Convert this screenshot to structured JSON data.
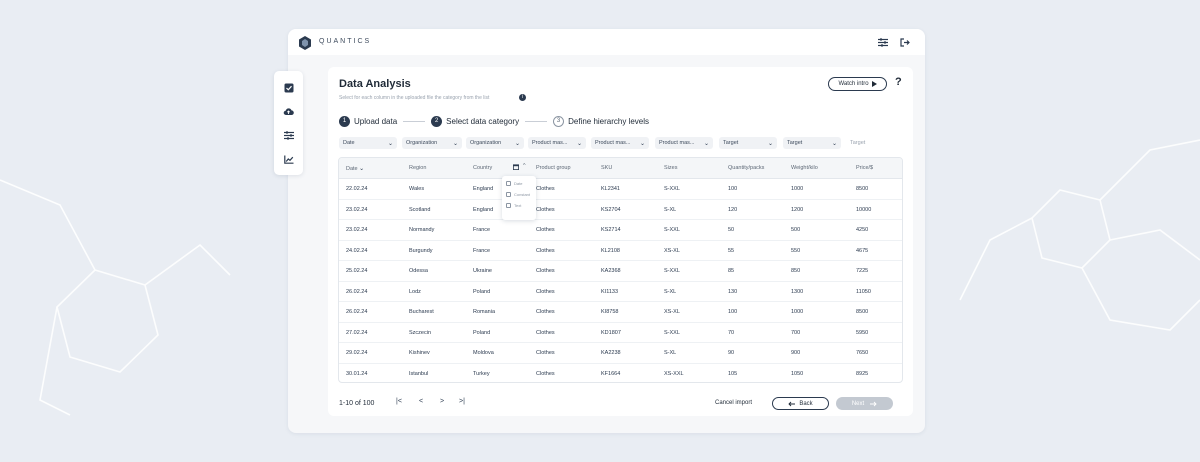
{
  "app": {
    "brand": "QUANTICS"
  },
  "page": {
    "title": "Data Analysis",
    "subtitle": "Select for each column in the uploaded file the category from the list",
    "watch_intro": "Watch intro",
    "help": "?"
  },
  "steps": [
    {
      "num": "1",
      "label": "Upload data"
    },
    {
      "num": "2",
      "label": "Select data category"
    },
    {
      "num": "3",
      "label": "Define hierarchy levels"
    }
  ],
  "filters": [
    "Date",
    "Organization",
    "Organization",
    "Product mas...",
    "Product mas...",
    "Product mas...",
    "Target",
    "Target",
    "Target"
  ],
  "table": {
    "headers": [
      "Date",
      "Region",
      "Country",
      "Product group",
      "SKU",
      "Sizes",
      "Quantity/packs",
      "Weight/kilo",
      "Price/$"
    ],
    "rows": [
      [
        "22.02.24",
        "Wales",
        "England",
        "Clothes",
        "KL2341",
        "S-XXL",
        "100",
        "1000",
        "8500"
      ],
      [
        "23.02.24",
        "Scotland",
        "England",
        "Clothes",
        "KS2704",
        "S-XL",
        "120",
        "1200",
        "10000"
      ],
      [
        "23.02.24",
        "Normandy",
        "France",
        "Clothes",
        "KS2714",
        "S-XXL",
        "50",
        "500",
        "4250"
      ],
      [
        "24.02.24",
        "Burgundy",
        "France",
        "Clothes",
        "KL2108",
        "XS-XL",
        "55",
        "550",
        "4675"
      ],
      [
        "25.02.24",
        "Odessa",
        "Ukraine",
        "Clothes",
        "KA2368",
        "S-XXL",
        "85",
        "850",
        "7225"
      ],
      [
        "26.02.24",
        "Lodz",
        "Poland",
        "Clothes",
        "KI1133",
        "S-XL",
        "130",
        "1300",
        "11050"
      ],
      [
        "26.02.24",
        "Bucharest",
        "Romania",
        "Clothes",
        "KI8758",
        "XS-XL",
        "100",
        "1000",
        "8500"
      ],
      [
        "27.02.24",
        "Szczecin",
        "Poland",
        "Clothes",
        "KD1807",
        "S-XXL",
        "70",
        "700",
        "5950"
      ],
      [
        "29.02.24",
        "Kishinev",
        "Moldova",
        "Clothes",
        "KA2238",
        "S-XL",
        "90",
        "900",
        "7650"
      ],
      [
        "30.01.24",
        "Istanbul",
        "Turkey",
        "Clothes",
        "KF1664",
        "XS-XXL",
        "105",
        "1050",
        "8925"
      ]
    ]
  },
  "popover": {
    "items": [
      "Date",
      "Constant",
      "Text"
    ]
  },
  "footer": {
    "range": "1-10 of 100",
    "first": "|<",
    "prev": "<",
    "next_page": ">",
    "last": ">|",
    "cancel": "Cancel import",
    "back": "Back",
    "next": "Next"
  },
  "colors": {
    "primary": "#2b3a4f",
    "accent": "#2b7fa6",
    "background": "#e9edf3"
  }
}
